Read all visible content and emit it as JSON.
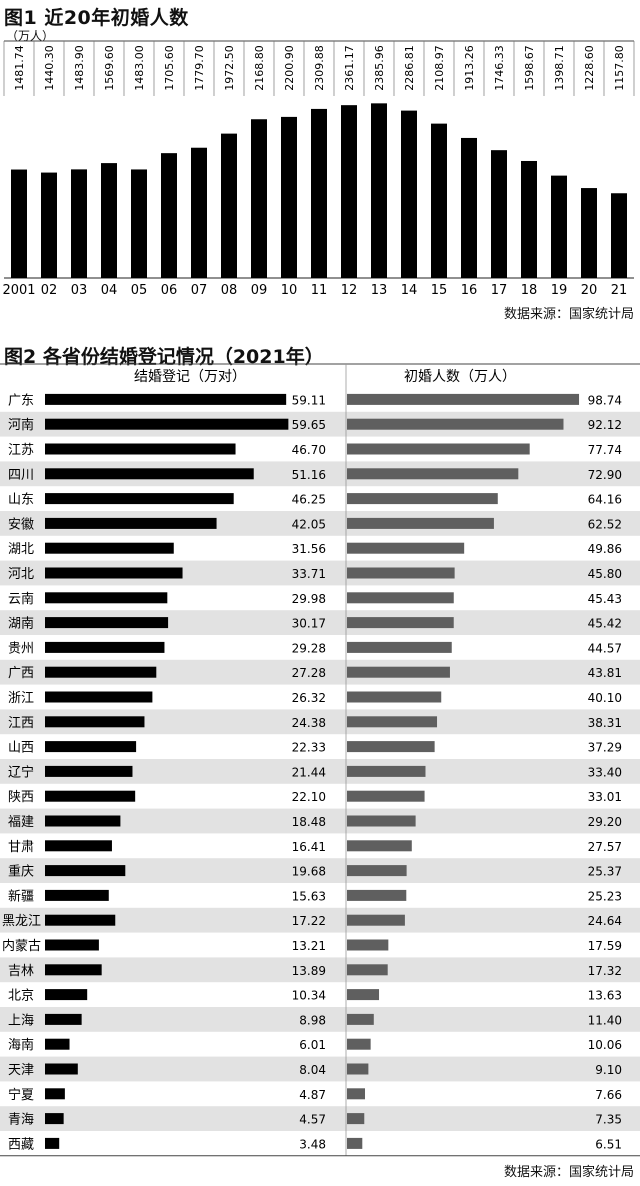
{
  "chart_data": [
    {
      "type": "bar",
      "title": "图1 近20年初婚人数",
      "unit": "（万人）",
      "categories": [
        "2001",
        "02",
        "03",
        "04",
        "05",
        "06",
        "07",
        "08",
        "09",
        "10",
        "11",
        "12",
        "13",
        "14",
        "15",
        "16",
        "17",
        "18",
        "19",
        "20",
        "21"
      ],
      "values": [
        1481.74,
        1440.3,
        1483.9,
        1569.6,
        1483.0,
        1705.6,
        1779.7,
        1972.5,
        2168.8,
        2200.9,
        2309.88,
        2361.17,
        2385.96,
        2286.81,
        2108.97,
        1913.26,
        1746.33,
        1598.67,
        1398.71,
        1228.6,
        1157.8
      ],
      "value_labels": [
        "1481.74",
        "1440.30",
        "1483.90",
        "1569.60",
        "1483.00",
        "1705.60",
        "1779.70",
        "1972.50",
        "2168.80",
        "2200.90",
        "2309.88",
        "2361.17",
        "2385.96",
        "2286.81",
        "2108.97",
        "1913.26",
        "1746.33",
        "1598.67",
        "1398.71",
        "1228.60",
        "1157.80"
      ],
      "bar_color": "#000000",
      "source": "数据来源：国家统计局"
    },
    {
      "type": "bar",
      "orientation": "horizontal",
      "title": "图2 各省份结婚登记情况（2021年）",
      "categories": [
        "广东",
        "河南",
        "江苏",
        "四川",
        "山东",
        "安徽",
        "湖北",
        "河北",
        "云南",
        "湖南",
        "贵州",
        "广西",
        "浙江",
        "江西",
        "山西",
        "辽宁",
        "陕西",
        "福建",
        "甘肃",
        "重庆",
        "新疆",
        "黑龙江",
        "内蒙古",
        "吉林",
        "北京",
        "上海",
        "海南",
        "天津",
        "宁夏",
        "青海",
        "西藏"
      ],
      "series": [
        {
          "name": "结婚登记（万对）",
          "color": "#000000",
          "values": [
            59.11,
            59.65,
            46.7,
            51.16,
            46.25,
            42.05,
            31.56,
            33.71,
            29.98,
            30.17,
            29.28,
            27.28,
            26.32,
            24.38,
            22.33,
            21.44,
            22.1,
            18.48,
            16.41,
            19.68,
            15.63,
            17.22,
            13.21,
            13.89,
            10.34,
            8.98,
            6.01,
            8.04,
            4.87,
            4.57,
            3.48
          ],
          "labels": [
            "59.11",
            "59.65",
            "46.70",
            "51.16",
            "46.25",
            "42.05",
            "31.56",
            "33.71",
            "29.98",
            "30.17",
            "29.28",
            "27.28",
            "26.32",
            "24.38",
            "22.33",
            "21.44",
            "22.10",
            "18.48",
            "16.41",
            "19.68",
            "15.63",
            "17.22",
            "13.21",
            "13.89",
            "10.34",
            "8.98",
            "6.01",
            "8.04",
            "4.87",
            "4.57",
            "3.48"
          ]
        },
        {
          "name": "初婚人数（万人）",
          "color": "#5f5f5f",
          "values": [
            98.74,
            92.12,
            77.74,
            72.9,
            64.16,
            62.52,
            49.86,
            45.8,
            45.43,
            45.42,
            44.57,
            43.81,
            40.1,
            38.31,
            37.29,
            33.4,
            33.01,
            29.2,
            27.57,
            25.37,
            25.23,
            24.64,
            17.59,
            17.32,
            13.63,
            11.4,
            10.06,
            9.1,
            7.66,
            7.35,
            6.51
          ],
          "labels": [
            "98.74",
            "92.12",
            "77.74",
            "72.90",
            "64.16",
            "62.52",
            "49.86",
            "45.80",
            "45.43",
            "45.42",
            "44.57",
            "43.81",
            "40.10",
            "38.31",
            "37.29",
            "33.40",
            "33.01",
            "29.20",
            "27.57",
            "25.37",
            "25.23",
            "24.64",
            "17.59",
            "17.32",
            "13.63",
            "11.40",
            "10.06",
            "9.10",
            "7.66",
            "7.35",
            "6.51"
          ]
        }
      ],
      "stripe_color": "#e2e2e2",
      "source": "数据来源：国家统计局"
    }
  ]
}
